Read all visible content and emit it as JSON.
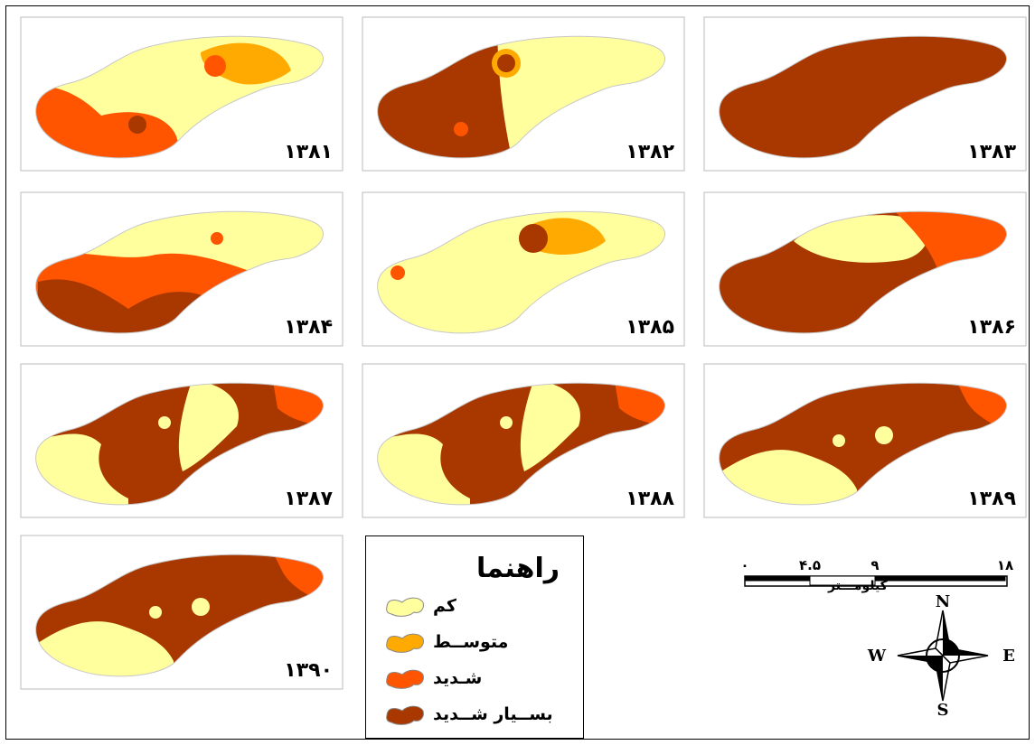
{
  "map": {
    "colors": {
      "kam": "#ffff9e",
      "motavaset": "#ffaa00",
      "shadid": "#ff5500",
      "besyar": "#a83800"
    },
    "panels": [
      {
        "year": "۱۳۸۱",
        "dominant": "kam"
      },
      {
        "year": "۱۳۸۲",
        "dominant": "besyar"
      },
      {
        "year": "۱۳۸۳",
        "dominant": "besyar"
      },
      {
        "year": "۱۳۸۴",
        "dominant": "kam"
      },
      {
        "year": "۱۳۸۵",
        "dominant": "kam"
      },
      {
        "year": "۱۳۸۶",
        "dominant": "besyar"
      },
      {
        "year": "۱۳۸۷",
        "dominant": "besyar"
      },
      {
        "year": "۱۳۸۸",
        "dominant": "besyar"
      },
      {
        "year": "۱۳۸۹",
        "dominant": "besyar"
      },
      {
        "year": "۱۳۹۰",
        "dominant": "besyar"
      }
    ]
  },
  "legend": {
    "title": "راهنما",
    "items": [
      {
        "label": "کم",
        "color": "#ffff9e"
      },
      {
        "label": "متوســط",
        "color": "#ffaa00"
      },
      {
        "label": "شـديد",
        "color": "#ff5500"
      },
      {
        "label": "بســيار شــديد",
        "color": "#a83800"
      }
    ]
  },
  "scale": {
    "ticks": [
      "۰",
      "۴.۵",
      "۹",
      "۱۸"
    ],
    "unit": "كيلومـــتر"
  },
  "compass": {
    "n": "N",
    "s": "S",
    "e": "E",
    "w": "W"
  }
}
